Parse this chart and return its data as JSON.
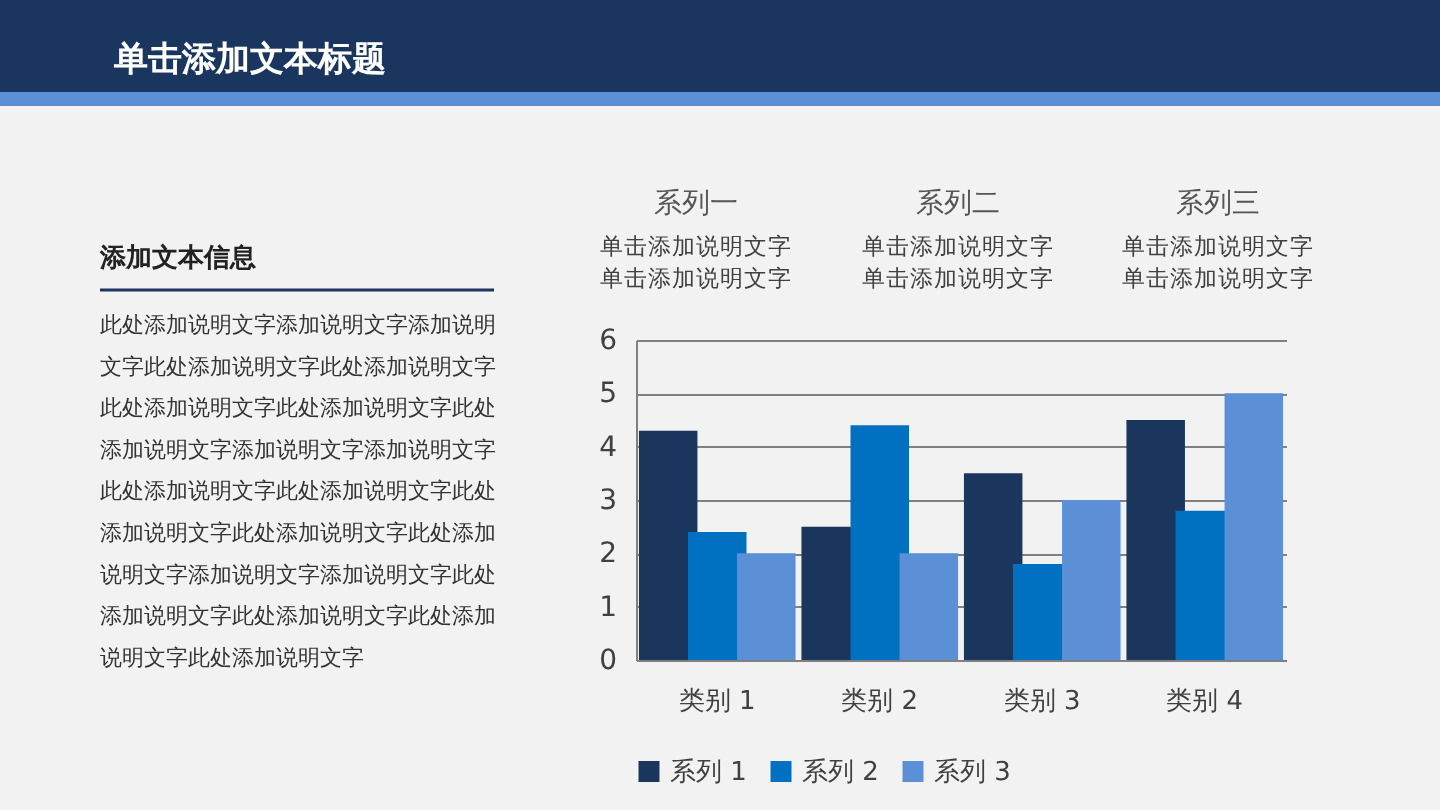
{
  "chart_data": {
    "type": "bar",
    "title": "单击添加文本标题",
    "categories": [
      "类别 1",
      "类别 2",
      "类别 3",
      "类别 4"
    ],
    "series": [
      {
        "name": "系列 1",
        "color": "#1b365d",
        "values": [
          4.3,
          2.5,
          3.5,
          4.5
        ]
      },
      {
        "name": "系列 2",
        "color": "#0070c0",
        "values": [
          2.4,
          4.4,
          1.8,
          2.8
        ]
      },
      {
        "name": "系列 3",
        "color": "#5b8fd6",
        "values": [
          2,
          2,
          3,
          5
        ]
      }
    ],
    "ylim": [
      0,
      6
    ],
    "yticks": [
      0,
      1,
      2,
      3,
      4,
      5,
      6
    ],
    "grid": "y",
    "legend": "bottom",
    "annotations": [
      "添加文本信息",
      "此处添加说明文字添加说明文字添加说明文字此处添加说明文字此处添加说明文字此处添加说明文字此处添加说明文字此处添加说明文字添加说明文字添加说明文字此处添加说明文字此处添加说明文字此处添加说明文字此处添加说明文字此处添加说明文字添加说明文字添加说明文字此处添加说明文字此处添加说明文字此处添加说明文字此处添加说明文字",
      "系列一",
      "单击添加说明文字",
      "单击添加说明文字",
      "系列二",
      "单击添加说明文字",
      "单击添加说明文字",
      "系列三",
      "单击添加说明文字",
      "单击添加说明文字"
    ]
  }
}
